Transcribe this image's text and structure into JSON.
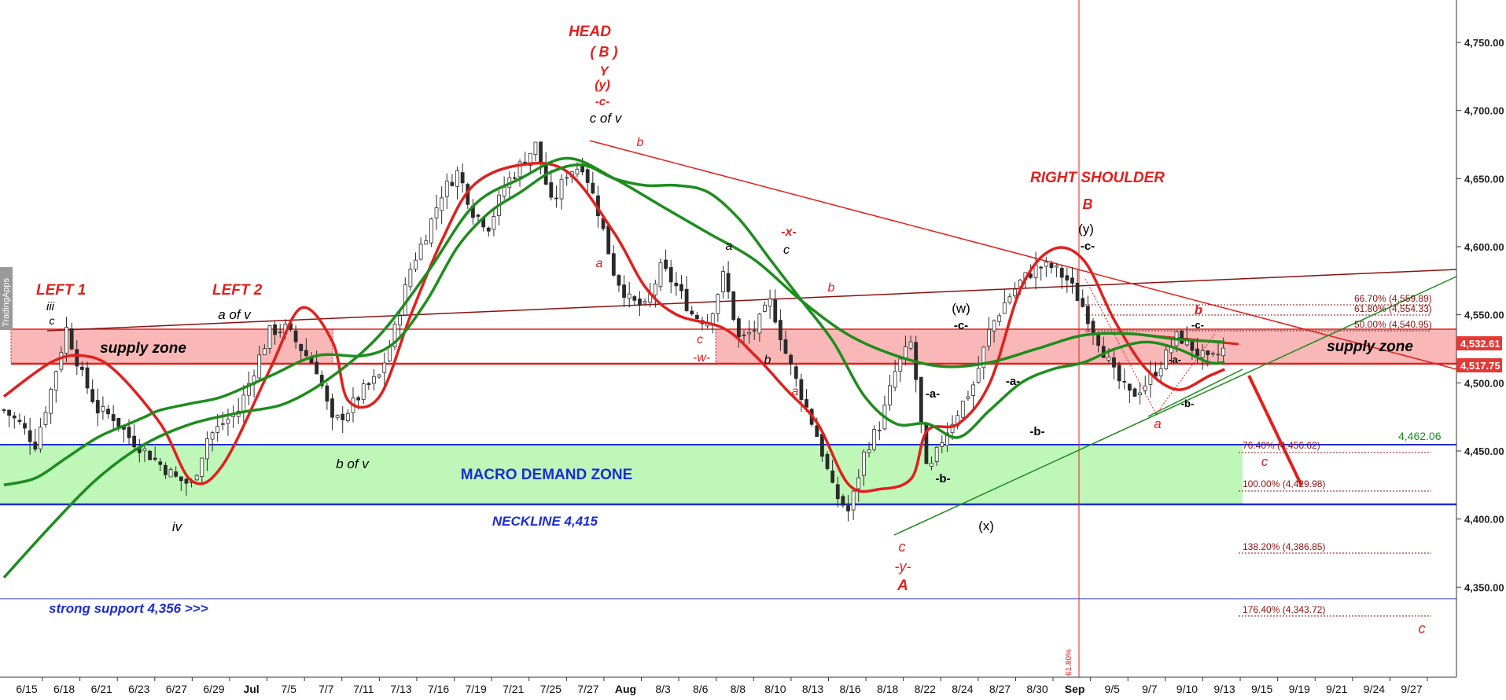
{
  "chart_data": {
    "type": "candlestick",
    "y_axis": {
      "ticks": [
        "4,750.00",
        "4,700.00",
        "4,650.00",
        "4,600.00",
        "4,550.00",
        "4,500.00",
        "4,450.00",
        "4,400.00",
        "4,350.00"
      ],
      "tick_values": [
        4750,
        4700,
        4650,
        4600,
        4550,
        4500,
        4450,
        4400,
        4350
      ],
      "ylim": [
        4290,
        4770
      ],
      "price_tags": [
        {
          "text": "4,532.61",
          "value": 4532.61,
          "color": "#e53935"
        },
        {
          "text": "4,517.75",
          "value": 4517.75,
          "color": "#e53935"
        },
        {
          "text": "4,462.06",
          "value": 4462.06,
          "color": "#1e8c1e"
        }
      ]
    },
    "x_axis": {
      "labels": [
        "6/15",
        "6/18",
        "6/21",
        "6/23",
        "6/27",
        "6/29",
        "Jul",
        "7/5",
        "7/7",
        "7/11",
        "7/13",
        "7/16",
        "7/19",
        "7/21",
        "7/25",
        "7/27",
        "Aug",
        "8/3",
        "8/6",
        "8/8",
        "8/10",
        "8/13",
        "8/16",
        "8/18",
        "8/22",
        "8/24",
        "8/27",
        "8/30",
        "Sep",
        "9/5",
        "9/7",
        "9/10",
        "9/13",
        "9/15",
        "9/19",
        "9/21",
        "9/24",
        "9/27"
      ],
      "bold_labels": [
        "Jul",
        "Aug",
        "Sep"
      ]
    },
    "close_path": [
      [
        0,
        4480
      ],
      [
        1,
        4470
      ],
      [
        2,
        4455
      ],
      [
        3,
        4495
      ],
      [
        4,
        4540
      ],
      [
        5,
        4505
      ],
      [
        6,
        4480
      ],
      [
        7,
        4475
      ],
      [
        8,
        4460
      ],
      [
        9,
        4450
      ],
      [
        10,
        4440
      ],
      [
        11,
        4430
      ],
      [
        12,
        4425
      ],
      [
        13,
        4460
      ],
      [
        14,
        4470
      ],
      [
        15,
        4480
      ],
      [
        16,
        4510
      ],
      [
        17,
        4538
      ],
      [
        18,
        4540
      ],
      [
        19,
        4525
      ],
      [
        20,
        4510
      ],
      [
        21,
        4470
      ],
      [
        22,
        4480
      ],
      [
        23,
        4495
      ],
      [
        24,
        4505
      ],
      [
        25,
        4540
      ],
      [
        26,
        4585
      ],
      [
        27,
        4610
      ],
      [
        28,
        4640
      ],
      [
        29,
        4655
      ],
      [
        30,
        4625
      ],
      [
        31,
        4615
      ],
      [
        32,
        4645
      ],
      [
        33,
        4660
      ],
      [
        34,
        4675
      ],
      [
        35,
        4630
      ],
      [
        36,
        4655
      ],
      [
        37,
        4660
      ],
      [
        38,
        4625
      ],
      [
        39,
        4580
      ],
      [
        40,
        4560
      ],
      [
        41,
        4555
      ],
      [
        42,
        4585
      ],
      [
        43,
        4570
      ],
      [
        44,
        4550
      ],
      [
        45,
        4545
      ],
      [
        46,
        4580
      ],
      [
        47,
        4530
      ],
      [
        48,
        4540
      ],
      [
        49,
        4560
      ],
      [
        50,
        4520
      ],
      [
        51,
        4490
      ],
      [
        52,
        4460
      ],
      [
        53,
        4420
      ],
      [
        54,
        4405
      ],
      [
        55,
        4450
      ],
      [
        56,
        4470
      ],
      [
        57,
        4510
      ],
      [
        58,
        4530
      ],
      [
        59,
        4430
      ],
      [
        60,
        4460
      ],
      [
        61,
        4480
      ],
      [
        62,
        4500
      ],
      [
        63,
        4540
      ],
      [
        64,
        4560
      ],
      [
        65,
        4575
      ],
      [
        66,
        4585
      ],
      [
        67,
        4585
      ],
      [
        68,
        4575
      ],
      [
        69,
        4555
      ],
      [
        70,
        4530
      ],
      [
        71,
        4505
      ],
      [
        72,
        4490
      ],
      [
        73,
        4500
      ],
      [
        74,
        4515
      ],
      [
        75,
        4535
      ],
      [
        76,
        4525
      ],
      [
        77,
        4515
      ],
      [
        78,
        4525
      ]
    ],
    "overlays": [
      {
        "kind": "moving-average",
        "color": "#e0201e",
        "points": [
          [
            0,
            4490
          ],
          [
            3,
            4515
          ],
          [
            5,
            4520
          ],
          [
            7,
            4510
          ],
          [
            10,
            4470
          ],
          [
            12,
            4428
          ],
          [
            14,
            4440
          ],
          [
            17,
            4510
          ],
          [
            19,
            4555
          ],
          [
            21,
            4530
          ],
          [
            22,
            4487
          ],
          [
            24,
            4490
          ],
          [
            26,
            4550
          ],
          [
            28,
            4605
          ],
          [
            30,
            4645
          ],
          [
            33,
            4660
          ],
          [
            36,
            4655
          ],
          [
            39,
            4610
          ],
          [
            41,
            4570
          ],
          [
            43,
            4550
          ],
          [
            46,
            4540
          ],
          [
            48,
            4520
          ],
          [
            50,
            4495
          ],
          [
            52,
            4470
          ],
          [
            54,
            4425
          ],
          [
            56,
            4422
          ],
          [
            58,
            4430
          ],
          [
            59,
            4465
          ],
          [
            61,
            4470
          ],
          [
            63,
            4500
          ],
          [
            65,
            4570
          ],
          [
            67,
            4598
          ],
          [
            69,
            4590
          ],
          [
            71,
            4545
          ],
          [
            73,
            4510
          ],
          [
            75,
            4495
          ],
          [
            77,
            4505
          ],
          [
            78,
            4510
          ]
        ]
      },
      {
        "kind": "moving-average",
        "color": "#1e8c1e",
        "points": [
          [
            0,
            4357
          ],
          [
            3,
            4395
          ],
          [
            6,
            4430
          ],
          [
            9,
            4455
          ],
          [
            12,
            4470
          ],
          [
            15,
            4478
          ],
          [
            18,
            4485
          ],
          [
            21,
            4505
          ],
          [
            24,
            4535
          ],
          [
            27,
            4580
          ],
          [
            30,
            4630
          ],
          [
            33,
            4650
          ],
          [
            36,
            4665
          ],
          [
            39,
            4650
          ],
          [
            42,
            4630
          ],
          [
            45,
            4610
          ],
          [
            48,
            4590
          ],
          [
            51,
            4560
          ],
          [
            54,
            4535
          ],
          [
            57,
            4520
          ],
          [
            60,
            4512
          ],
          [
            63,
            4515
          ],
          [
            66,
            4525
          ],
          [
            69,
            4535
          ],
          [
            72,
            4536
          ],
          [
            75,
            4532
          ],
          [
            78,
            4530
          ]
        ]
      },
      {
        "kind": "moving-average",
        "color": "#1e8c1e",
        "points": [
          [
            0,
            4425
          ],
          [
            2,
            4430
          ],
          [
            4,
            4445
          ],
          [
            6,
            4460
          ],
          [
            8,
            4470
          ],
          [
            9,
            4475
          ],
          [
            10,
            4480
          ],
          [
            12,
            4485
          ],
          [
            14,
            4490
          ],
          [
            17,
            4505
          ],
          [
            20,
            4520
          ],
          [
            23,
            4520
          ],
          [
            25,
            4530
          ],
          [
            27,
            4560
          ],
          [
            29,
            4600
          ],
          [
            31,
            4625
          ],
          [
            33,
            4640
          ],
          [
            35,
            4655
          ],
          [
            37,
            4660
          ],
          [
            39,
            4650
          ],
          [
            41,
            4645
          ],
          [
            43,
            4645
          ],
          [
            45,
            4640
          ],
          [
            47,
            4620
          ],
          [
            49,
            4590
          ],
          [
            51,
            4560
          ],
          [
            53,
            4530
          ],
          [
            55,
            4490
          ],
          [
            57,
            4470
          ],
          [
            59,
            4470
          ],
          [
            61,
            4460
          ],
          [
            63,
            4480
          ],
          [
            65,
            4500
          ],
          [
            67,
            4510
          ],
          [
            69,
            4515
          ],
          [
            71,
            4525
          ],
          [
            73,
            4530
          ],
          [
            75,
            4525
          ],
          [
            77,
            4515
          ],
          [
            78,
            4515
          ]
        ]
      }
    ],
    "zones": [
      {
        "name": "supply zone",
        "from": 4517,
        "to": 4543,
        "color": "#f7a8a8"
      },
      {
        "name": "MACRO DEMAND ZONE",
        "from": 4420,
        "to": 4462,
        "color": "#b9f5b2"
      }
    ],
    "horizontal_lines": [
      {
        "value": 4462.06,
        "color": "#1d2bd6"
      },
      {
        "value": 4421,
        "color": "#1d2bd6"
      },
      {
        "value": 4356,
        "color": "#1d2bd6"
      }
    ],
    "fib_levels": [
      {
        "text": "66.70% (4,559.89)",
        "value": 4559.89
      },
      {
        "text": "61.80% (4,554.33)",
        "value": 4554.33
      },
      {
        "text": "50.00% (4,540.95)",
        "value": 4540.95
      },
      {
        "text": "76.40% (4,456.62)",
        "value": 4456.62
      },
      {
        "text": "100.00% (4,429.98)",
        "value": 4429.98
      },
      {
        "text": "138.20% (4,386.85)",
        "value": 4386.85
      },
      {
        "text": "176.40% (4,343.72)",
        "value": 4343.72
      }
    ],
    "annotations": [
      {
        "text": "HEAD",
        "color": "#e0201e"
      },
      {
        "text": "( B )",
        "color": "#e0201e"
      },
      {
        "text": "Y",
        "color": "#e0201e"
      },
      {
        "text": "(y)",
        "color": "#e0201e"
      },
      {
        "text": "-c-",
        "color": "#e0201e"
      },
      {
        "text": "c of v",
        "color": "#000000"
      },
      {
        "text": "LEFT 1",
        "color": "#e0201e"
      },
      {
        "text": "LEFT 2",
        "color": "#e0201e"
      },
      {
        "text": "RIGHT SHOULDER",
        "color": "#e0201e"
      },
      {
        "text": "B",
        "color": "#e0201e"
      },
      {
        "text": "(y)",
        "color": "#000000"
      },
      {
        "text": "-c-",
        "color": "#000000"
      },
      {
        "text": "iii",
        "color": "#000000"
      },
      {
        "text": "c",
        "color": "#000000"
      },
      {
        "text": "a of v",
        "color": "#000000"
      },
      {
        "text": "supply zone",
        "color": "#000000"
      },
      {
        "text": "supply zone",
        "color": "#000000"
      },
      {
        "text": "b of v",
        "color": "#000000"
      },
      {
        "text": "iv",
        "color": "#000000"
      },
      {
        "text": "MACRO DEMAND ZONE",
        "color": "#1d2bd6"
      },
      {
        "text": "NECKLINE 4,415",
        "color": "#1d2bd6"
      },
      {
        "text": "strong support 4,356 >>>",
        "color": "#1d2bd6"
      },
      {
        "text": "b",
        "color": "#e0201e"
      },
      {
        "text": "a",
        "color": "#e0201e"
      },
      {
        "text": "a",
        "color": "#000000"
      },
      {
        "text": "-x-",
        "color": "#e0201e"
      },
      {
        "text": "c",
        "color": "#000000"
      },
      {
        "text": "b",
        "color": "#e0201e"
      },
      {
        "text": "c",
        "color": "#e0201e"
      },
      {
        "text": "-w-",
        "color": "#e0201e"
      },
      {
        "text": "b",
        "color": "#000000"
      },
      {
        "text": "a",
        "color": "#e0201e"
      },
      {
        "text": "(w)",
        "color": "#000000"
      },
      {
        "text": "-c-",
        "color": "#000000"
      },
      {
        "text": "-a-",
        "color": "#000000"
      },
      {
        "text": "-b-",
        "color": "#000000"
      },
      {
        "text": "-a-",
        "color": "#000000"
      },
      {
        "text": "-b-",
        "color": "#000000"
      },
      {
        "text": "(x)",
        "color": "#000000"
      },
      {
        "text": "c",
        "color": "#e0201e"
      },
      {
        "text": "-y-",
        "color": "#e0201e"
      },
      {
        "text": "A",
        "color": "#e0201e"
      },
      {
        "text": "b",
        "color": "#e0201e"
      },
      {
        "text": "-c-",
        "color": "#000000"
      },
      {
        "text": "-a-",
        "color": "#000000"
      },
      {
        "text": "-b-",
        "color": "#000000"
      },
      {
        "text": "a",
        "color": "#e0201e"
      },
      {
        "text": "c",
        "color": "#e0201e"
      },
      {
        "text": "c",
        "color": "#e0201e"
      },
      {
        "text": "61.80%",
        "color": "#e0201e"
      }
    ],
    "watermark": "TradingApps",
    "grid": false
  }
}
